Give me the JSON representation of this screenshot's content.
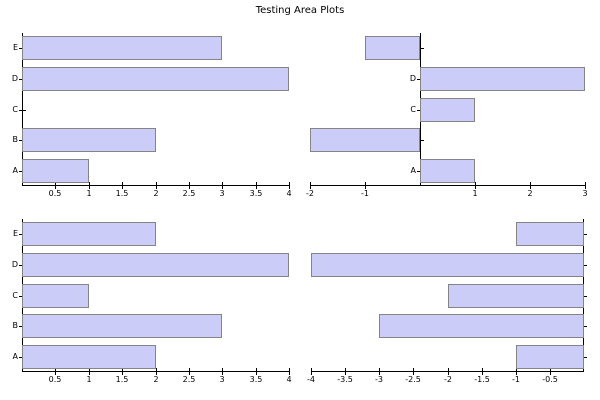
{
  "title": "Testing Area Plots",
  "colors": {
    "bar_fill": "#ccccf8",
    "bar_border": "#848484",
    "axis": "#000000",
    "background": "#ffffff"
  },
  "chart_data": [
    {
      "type": "bar",
      "orientation": "horizontal",
      "position": "top-left",
      "title": "",
      "categories": [
        "A",
        "B",
        "C",
        "D",
        "E"
      ],
      "values": [
        1,
        2,
        0,
        4,
        3
      ],
      "xlim": [
        0,
        4
      ],
      "xticks": [
        0.5,
        1,
        1.5,
        2,
        2.5,
        3,
        3.5,
        4
      ],
      "legend": "none",
      "grid": false
    },
    {
      "type": "bar",
      "orientation": "horizontal",
      "position": "top-right",
      "title": "",
      "categories": [
        "A",
        "B",
        "C",
        "D",
        "E"
      ],
      "values": [
        1,
        -2,
        1,
        3,
        -1
      ],
      "xlim": [
        -2,
        3
      ],
      "xticks": [
        -2,
        -1,
        1,
        2,
        3
      ],
      "legend": "none",
      "grid": false
    },
    {
      "type": "bar",
      "orientation": "horizontal",
      "position": "bottom-left",
      "title": "",
      "categories": [
        "A",
        "B",
        "C",
        "D",
        "E"
      ],
      "values": [
        2,
        3,
        1,
        4,
        2
      ],
      "xlim": [
        0,
        4
      ],
      "xticks": [
        0.5,
        1,
        1.5,
        2,
        2.5,
        3,
        3.5,
        4
      ],
      "legend": "none",
      "grid": false
    },
    {
      "type": "bar",
      "orientation": "horizontal",
      "position": "bottom-right",
      "title": "",
      "categories": [
        "A",
        "B",
        "C",
        "D",
        "E"
      ],
      "values": [
        -1,
        -3,
        -2,
        -4,
        -1
      ],
      "xlim": [
        -4,
        0
      ],
      "xticks": [
        -4,
        -3.5,
        -3,
        -2.5,
        -2,
        -1.5,
        -1,
        -0.5
      ],
      "legend": "none",
      "grid": false
    }
  ]
}
